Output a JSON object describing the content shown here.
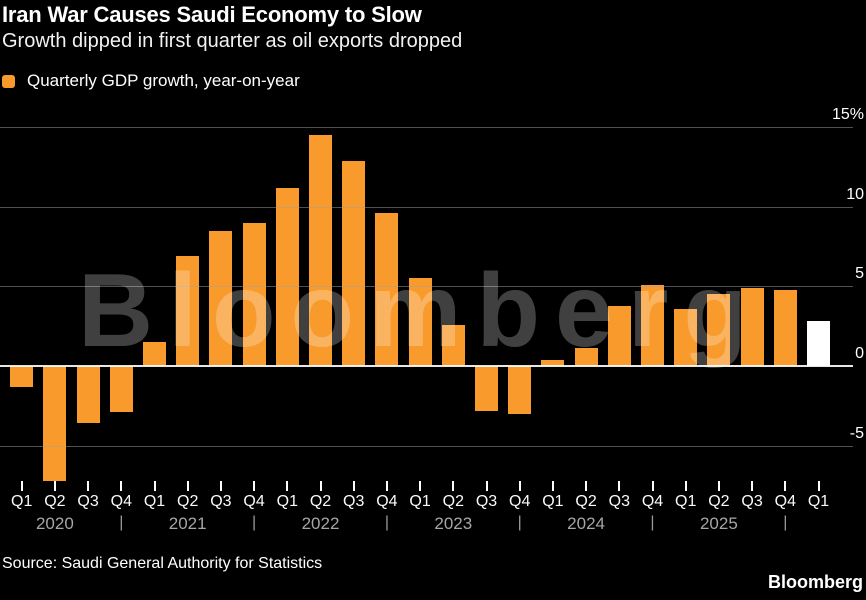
{
  "header": {
    "title": "Iran War Causes Saudi Economy to Slow",
    "subtitle": "Growth dipped in first quarter as oil exports dropped"
  },
  "legend": {
    "label": "Quarterly GDP growth, year-on-year"
  },
  "watermark": {
    "text": "Bloomberg"
  },
  "footer": {
    "source": "Source: Saudi General Authority for Statistics",
    "brand": "Bloomberg"
  },
  "colors": {
    "background": "#000000",
    "bar": "#F89B2C",
    "highlight_bar": "#FFFFFF",
    "gridline": "rgba(160,160,160,0.5)",
    "zero_line": "rgba(255,255,255,0.9)",
    "text": "#FFFFFF",
    "year_text": "#a6a6a6"
  },
  "chart_data": {
    "type": "bar",
    "title": "Iran War Causes Saudi Economy to Slow",
    "subtitle": "Growth dipped in first quarter as oil exports dropped",
    "series_name": "Quarterly GDP growth, year-on-year",
    "categories": [
      "Q1 2020",
      "Q2 2020",
      "Q3 2020",
      "Q4 2020",
      "Q1 2021",
      "Q2 2021",
      "Q3 2021",
      "Q4 2021",
      "Q1 2022",
      "Q2 2022",
      "Q3 2022",
      "Q4 2022",
      "Q1 2023",
      "Q2 2023",
      "Q3 2023",
      "Q4 2023",
      "Q1 2024",
      "Q2 2024",
      "Q3 2024",
      "Q4 2024",
      "Q1 2025",
      "Q2 2025",
      "Q3 2025",
      "Q4 2025",
      "Q1 2026"
    ],
    "values": [
      -1.3,
      -7.2,
      -3.6,
      -2.9,
      1.5,
      6.9,
      8.5,
      9.0,
      11.2,
      14.5,
      12.9,
      9.6,
      5.5,
      2.6,
      -2.8,
      -3.0,
      0.4,
      1.1,
      3.8,
      5.1,
      3.6,
      4.5,
      4.9,
      4.8,
      2.8
    ],
    "highlight_last": true,
    "ylabel": "",
    "xlabel": "",
    "ylim": [
      -7.5,
      16
    ],
    "grid": true,
    "legend_position": "top-left",
    "yticks": [
      {
        "label": "15%",
        "value": 15
      },
      {
        "label": "10",
        "value": 10
      },
      {
        "label": "5",
        "value": 5
      },
      {
        "label": "0",
        "value": 0
      },
      {
        "label": "-5",
        "value": -5
      }
    ],
    "x_axis": {
      "quarter_labels": [
        "Q1",
        "Q2",
        "Q3",
        "Q4",
        "Q1",
        "Q2",
        "Q3",
        "Q4",
        "Q1",
        "Q2",
        "Q3",
        "Q4",
        "Q1",
        "Q2",
        "Q3",
        "Q4",
        "Q1",
        "Q2",
        "Q3",
        "Q4",
        "Q1",
        "Q2",
        "Q3",
        "Q4",
        "Q1"
      ],
      "years": [
        {
          "label": "2020",
          "at_index": 1
        },
        {
          "label": "2021",
          "at_index": 5
        },
        {
          "label": "2022",
          "at_index": 9
        },
        {
          "label": "2023",
          "at_index": 13
        },
        {
          "label": "2024",
          "at_index": 17
        },
        {
          "label": "2025",
          "at_index": 21
        }
      ],
      "separator": "|",
      "separators_at": [
        3,
        7,
        11,
        15,
        19,
        23
      ]
    }
  }
}
